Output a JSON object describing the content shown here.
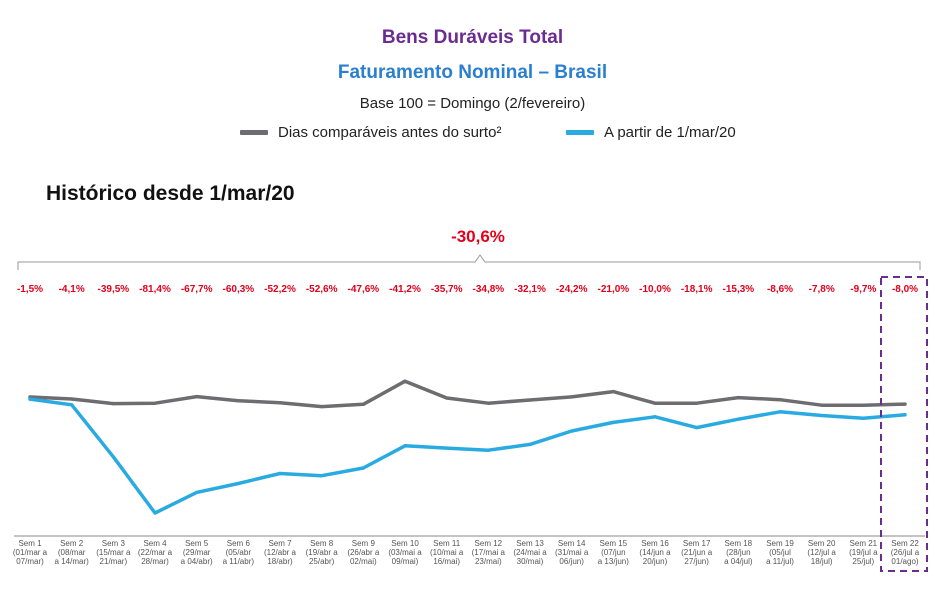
{
  "header": {
    "title": "Bens Duráveis Total",
    "subtitle": "Faturamento Nominal – Brasil",
    "base_note": "Base 100 = Domingo (2/fevereiro)",
    "section_title": "Histórico desde 1/mar/20",
    "colors": {
      "title": "#6a2c91",
      "subtitle": "#2b7fd0"
    }
  },
  "chart_data": {
    "type": "line",
    "categories": [
      [
        "Sem 1",
        "(01/mar a",
        "07/mar)"
      ],
      [
        "Sem 2",
        "(08/mar",
        "a 14/mar)"
      ],
      [
        "Sem 3",
        "(15/mar a",
        "21/mar)"
      ],
      [
        "Sem 4",
        "(22/mar a",
        "28/mar)"
      ],
      [
        "Sem 5",
        "(29/mar",
        "a 04/abr)"
      ],
      [
        "Sem 6",
        "(05/abr",
        "a 11/abr)"
      ],
      [
        "Sem 7",
        "(12/abr a",
        "18/abr)"
      ],
      [
        "Sem 8",
        "(19/abr a",
        "25/abr)"
      ],
      [
        "Sem 9",
        "(26/abr a",
        "02/mai)"
      ],
      [
        "Sem 10",
        "(03/mai a",
        "09/mai)"
      ],
      [
        "Sem 11",
        "(10/mai a",
        "16/mai)"
      ],
      [
        "Sem 12",
        "(17/mai a",
        "23/mai)"
      ],
      [
        "Sem 13",
        "(24/mai a",
        "30/mai)"
      ],
      [
        "Sem 14",
        "(31/mai a",
        "06/jun)"
      ],
      [
        "Sem 15",
        "(07/jun",
        "a 13/jun)"
      ],
      [
        "Sem 16",
        "(14/jun a",
        "20/jun)"
      ],
      [
        "Sem 17",
        "(21/jun a",
        "27/jun)"
      ],
      [
        "Sem 18",
        "(28/jun",
        "a 04/jul)"
      ],
      [
        "Sem 19",
        "(05/jul",
        "a 11/jul)"
      ],
      [
        "Sem 20",
        "(12/jul a",
        "18/jul)"
      ],
      [
        "Sem 21",
        "(19/jul a",
        "25/jul)"
      ],
      [
        "Sem 22",
        "(26/jul a",
        "01/ago)"
      ]
    ],
    "series": [
      {
        "name": "Dias comparáveis antes do surto²",
        "color": "#6d6d71",
        "values": [
          100,
          98.6,
          95.3,
          95.6,
          100.3,
          97.4,
          95.9,
          93.2,
          94.8,
          111.2,
          99.3,
          95.6,
          97.9,
          100.1,
          103.8,
          95.6,
          95.6,
          99.6,
          98.1,
          94.2,
          94.2,
          95
        ]
      },
      {
        "name": "A partir de 1/mar/20",
        "color": "#29abe2",
        "values": [
          98.5,
          94.5,
          57.6,
          17.8,
          32.4,
          38.7,
          45.8,
          44.2,
          49.7,
          65.4,
          63.8,
          62.3,
          66.4,
          75.9,
          82,
          86,
          78.3,
          84.3,
          89.5,
          86.9,
          85,
          87.4
        ]
      }
    ],
    "weekly_change_labels": [
      "-1,5%",
      "-4,1%",
      "-39,5%",
      "-81,4%",
      "-67,7%",
      "-60,3%",
      "-52,2%",
      "-52,6%",
      "-47,6%",
      "-41,2%",
      "-35,7%",
      "-34,8%",
      "-32,1%",
      "-24,2%",
      "-21,0%",
      "-10,0%",
      "-18,1%",
      "-15,3%",
      "-8,6%",
      "-7,8%",
      "-9,7%",
      "-8,0%"
    ],
    "total_change_label": "-30,6%",
    "highlighted_category_index": 21,
    "highlight_color": "#6a2c91",
    "grid": false,
    "legend_position": "top"
  }
}
